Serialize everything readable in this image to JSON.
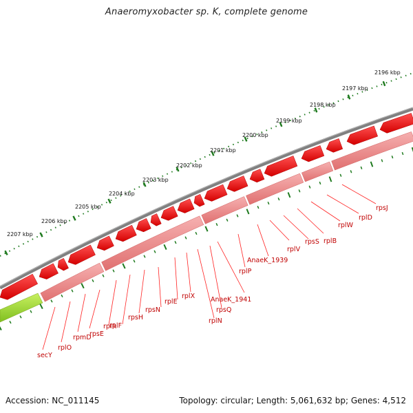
{
  "title": "Anaeromyxobacter sp. K, complete genome",
  "footer": {
    "accession": "Accession: NC_011145",
    "topology": "Topology: circular; Length: 5,061,632 bp; Genes: 4,512"
  },
  "scale_labels": [
    "2196 kbp",
    "2197 kbp",
    "2198 kbp",
    "2199 kbp",
    "2200 kbp",
    "2201 kbp",
    "2202 kbp",
    "2203 kbp",
    "2204 kbp",
    "2205 kbp",
    "2206 kbp",
    "2207 kbp"
  ],
  "gene_labels": [
    "rpsJ",
    "rplD",
    "rplW",
    "rplB",
    "rpsS",
    "rplV",
    "AnaeK_1939",
    "rplP",
    "AnaeK_1941",
    "rpsQ",
    "rplN",
    "rplX",
    "rplE",
    "rpsN",
    "rpsH",
    "rplF",
    "rplR",
    "rpsE",
    "rpmD",
    "rplO",
    "secY"
  ],
  "colors": {
    "backbone": "#7a7a7a",
    "forward_gene": "#e60000",
    "reverse_gene": "#f08a8a",
    "secY_gene": "#9acd32",
    "tick": "#1e7a1e",
    "label": "#c00000"
  }
}
